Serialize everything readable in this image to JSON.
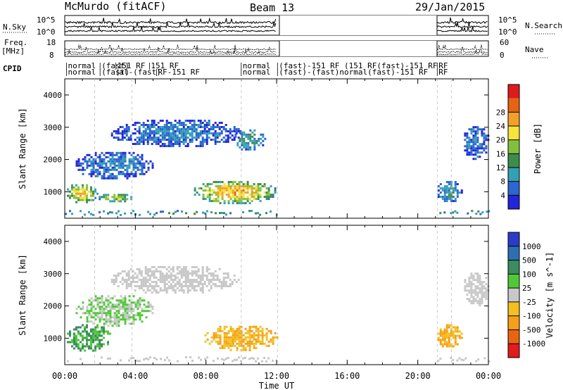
{
  "header": {
    "title_left": "McMurdo (fitACF)",
    "title_center": "Beam 13",
    "title_right": "29/Jan/2015"
  },
  "noise_panel": {
    "left_label": "N.Sky",
    "right_label": "N.Search",
    "left_ticks": [
      "10^5",
      "10^0"
    ],
    "right_ticks": [
      "10^5",
      "10^0"
    ]
  },
  "freq_panel": {
    "left_label_top": "Freq.",
    "left_label_bottom": "[MHz]",
    "right_label": "Nave",
    "left_ticks": [
      "18",
      "8"
    ],
    "right_ticks": [
      "60",
      "0"
    ]
  },
  "cpid_panel": {
    "label": "CPID",
    "segments": [
      {
        "row": 0,
        "start_h": 0.1,
        "text": "normal"
      },
      {
        "row": 1,
        "start_h": 0.1,
        "text": "normal"
      },
      {
        "row": 0,
        "start_h": 2.0,
        "text": "(fast)"
      },
      {
        "row": 1,
        "start_h": 2.0,
        "text": "(fast)"
      },
      {
        "row": 0,
        "start_h": 2.9,
        "text": "151 RF"
      },
      {
        "row": 1,
        "start_h": 3.0,
        "text": "al-(fast)"
      },
      {
        "row": 0,
        "start_h": 4.8,
        "text": "151 RF"
      },
      {
        "row": 1,
        "start_h": 5.2,
        "text": "RF-151 RF"
      },
      {
        "row": 0,
        "start_h": 10.0,
        "text": "normal"
      },
      {
        "row": 1,
        "start_h": 10.0,
        "text": "normal"
      },
      {
        "row": 0,
        "start_h": 12.05,
        "text": "(fast)-151 RF (151 RF(fast)-151 RF"
      },
      {
        "row": 1,
        "start_h": 12.05,
        "text": "(fast)-(fast)normal(fast)-151 RF"
      },
      {
        "row": 0,
        "start_h": 21.1,
        "text": "RF"
      },
      {
        "row": 1,
        "start_h": 21.1,
        "text": "RF"
      }
    ]
  },
  "chart_data": [
    {
      "type": "heatmap",
      "quantity": "Power",
      "ylabel": "Slant Range [km]",
      "yticks": [
        1000,
        2000,
        3000,
        4000
      ],
      "ylim": [
        180,
        4500
      ],
      "xlim": [
        0,
        24
      ],
      "colorbar": {
        "label": "Power [dB]",
        "ticks": [
          "4",
          "8",
          "12",
          "16",
          "20",
          "24",
          "28"
        ],
        "bands": [
          "#2424d8",
          "#2c66d0",
          "#33a0b4",
          "#3c8c4c",
          "#84c040",
          "#f4e43c",
          "#f4a028",
          "#e46414",
          "#dc1c1c"
        ]
      },
      "features": [
        {
          "t0": 0.0,
          "t1": 1.8,
          "r0": 650,
          "r1": 1300,
          "level": 24
        },
        {
          "t0": 1.8,
          "t1": 3.8,
          "r0": 700,
          "r1": 1000,
          "level": 20
        },
        {
          "t0": 7.2,
          "t1": 12.0,
          "r0": 650,
          "r1": 1400,
          "level": 26
        },
        {
          "t0": 0.5,
          "t1": 5.0,
          "r0": 1400,
          "r1": 2300,
          "level": 8
        },
        {
          "t0": 2.5,
          "t1": 10.0,
          "r0": 2400,
          "r1": 3300,
          "level": 8
        },
        {
          "t0": 9.5,
          "t1": 11.3,
          "r0": 2300,
          "r1": 3000,
          "level": 12
        },
        {
          "t0": 21.0,
          "t1": 22.5,
          "r0": 700,
          "r1": 1400,
          "level": 10
        },
        {
          "t0": 22.5,
          "t1": 24.0,
          "r0": 2000,
          "r1": 3100,
          "level": 8
        }
      ]
    },
    {
      "type": "heatmap",
      "quantity": "Velocity",
      "ylabel": "Slant Range [km]",
      "yticks": [
        1000,
        2000,
        3000,
        4000
      ],
      "ylim": [
        180,
        4500
      ],
      "xlim": [
        0,
        24
      ],
      "xticks": [
        "00:00",
        "04:00",
        "08:00",
        "12:00",
        "16:00",
        "20:00",
        "00:00"
      ],
      "xlabel": "Time UT",
      "colorbar": {
        "label": "Velocity [m s^-1]",
        "ticks": [
          "1000",
          "500",
          "100",
          "25",
          "-25",
          "-100",
          "-500",
          "-1000"
        ],
        "bands": [
          "#2c3cc8",
          "#2c70b0",
          "#3c8c60",
          "#50c838",
          "#c8c8c8",
          "#f4c020",
          "#f4a018",
          "#e86410",
          "#e01c1c"
        ]
      },
      "features": [
        {
          "t0": 0.0,
          "t1": 2.6,
          "r0": 600,
          "r1": 1500,
          "level": 100
        },
        {
          "t0": 0.5,
          "t1": 5.0,
          "r0": 1400,
          "r1": 2400,
          "level": 25
        },
        {
          "t0": 2.5,
          "t1": 9.8,
          "r0": 2400,
          "r1": 3300,
          "level": 0
        },
        {
          "t0": 7.8,
          "t1": 12.0,
          "r0": 650,
          "r1": 1450,
          "level": -100
        },
        {
          "t0": 21.0,
          "t1": 22.5,
          "r0": 700,
          "r1": 1500,
          "level": -100
        },
        {
          "t0": 22.5,
          "t1": 24.0,
          "r0": 2000,
          "r1": 3100,
          "level": 0
        }
      ]
    }
  ]
}
